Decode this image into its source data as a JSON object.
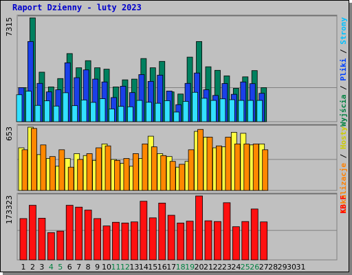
{
  "chart_data": {
    "type": "bar",
    "title": "Raport Dzienny -  luty 2023",
    "title_color": "#0000cc",
    "background": "#c0c0c0",
    "categories": [
      "1",
      "2",
      "3",
      "4",
      "5",
      "6",
      "7",
      "8",
      "9",
      "10",
      "11",
      "12",
      "13",
      "14",
      "15",
      "16",
      "17",
      "18",
      "19",
      "20",
      "21",
      "22",
      "23",
      "24",
      "25",
      "26",
      "27",
      "28",
      "29",
      "30",
      "31"
    ],
    "weekend_days": [
      "4",
      "5",
      "11",
      "12",
      "18",
      "19",
      "25",
      "26"
    ],
    "weekend_color": "#008040",
    "panels": [
      {
        "id": "visits",
        "ymax": 7315,
        "ymax_label": "7315",
        "right_labels": [
          {
            "text": "Wyjścia",
            "color": "#008040"
          },
          {
            "text": " / ",
            "color": "#000000"
          },
          {
            "text": "Pliki",
            "color": "#0040ff"
          },
          {
            "text": " / ",
            "color": "#000000"
          },
          {
            "text": "Strony",
            "color": "#00c0ff"
          }
        ],
        "reference_line_value": 2400,
        "series": [
          {
            "name": "Wyjścia",
            "color": "#00805f",
            "values": [
              2400,
              7315,
              3490,
              2450,
              3040,
              4800,
              3800,
              4300,
              3800,
              3700,
              2450,
              2950,
              3000,
              4450,
              3800,
              4250,
              2100,
              1950,
              4550,
              5650,
              3870,
              3620,
              3230,
              2350,
              3160,
              3600,
              2400,
              null,
              null,
              null,
              null
            ]
          },
          {
            "name": "Pliki",
            "color": "#1a40e8",
            "values": [
              2400,
              5650,
              2700,
              2100,
              2250,
              4150,
              3100,
              3650,
              3000,
              2800,
              1700,
              2500,
              2050,
              3320,
              2840,
              3280,
              2160,
              1200,
              2700,
              3430,
              2250,
              1850,
              2690,
              1930,
              2800,
              2680,
              2000,
              null,
              null,
              null,
              null
            ]
          },
          {
            "name": "Strony",
            "color": "#33e0ff",
            "values": [
              1900,
              2150,
              1150,
              1470,
              1100,
              2040,
              1130,
              1530,
              1360,
              1620,
              900,
              1080,
              1050,
              1500,
              1370,
              1300,
              1480,
              680,
              1430,
              2070,
              1650,
              1500,
              1610,
              1550,
              1500,
              1500,
              1500,
              null,
              null,
              null,
              null
            ]
          }
        ]
      },
      {
        "id": "visitors",
        "ymax": 653,
        "ymax_label": "653",
        "right_labels": [
          {
            "text": "Lokalizacje",
            "color": "#ff8000"
          },
          {
            "text": " / ",
            "color": "#000000"
          },
          {
            "text": "Hosty",
            "color": "#cccc00"
          }
        ],
        "reference_line_value": 320,
        "series": [
          {
            "name": "Hosty",
            "color": "#ffff40",
            "values": [
              440,
              653,
              370,
              330,
              250,
              330,
              380,
              360,
              310,
              480,
              320,
              280,
              250,
              330,
              560,
              380,
              350,
              240,
              300,
              610,
              550,
              440,
              450,
              600,
              590,
              470,
              480,
              null,
              null,
              null,
              null
            ]
          },
          {
            "name": "Lokalizacje",
            "color": "#ff8800",
            "values": [
              420,
              640,
              470,
              350,
              420,
              240,
              320,
              380,
              440,
              460,
              310,
              330,
              380,
              480,
              450,
              360,
              300,
              270,
              420,
              630,
              550,
              460,
              550,
              480,
              480,
              480,
              420,
              null,
              null,
              null,
              null
            ]
          }
        ]
      },
      {
        "id": "kbf",
        "ymax": 173323,
        "ymax_label": "173323",
        "right_labels": [
          {
            "text": "KB F",
            "color": "#ff0000"
          }
        ],
        "reference_line_value": 80000,
        "series": [
          {
            "name": "KB F",
            "color": "#ff1010",
            "values": [
              112000,
              148000,
              113000,
              74000,
              78000,
              148000,
              143000,
              135000,
              112000,
              92000,
              102000,
              100000,
              103000,
              159000,
              114000,
              154000,
              121000,
              100000,
              105000,
              173323,
              106000,
              104000,
              155000,
              90000,
              104000,
              138000,
              103000,
              null,
              null,
              null,
              null
            ]
          }
        ]
      }
    ]
  }
}
